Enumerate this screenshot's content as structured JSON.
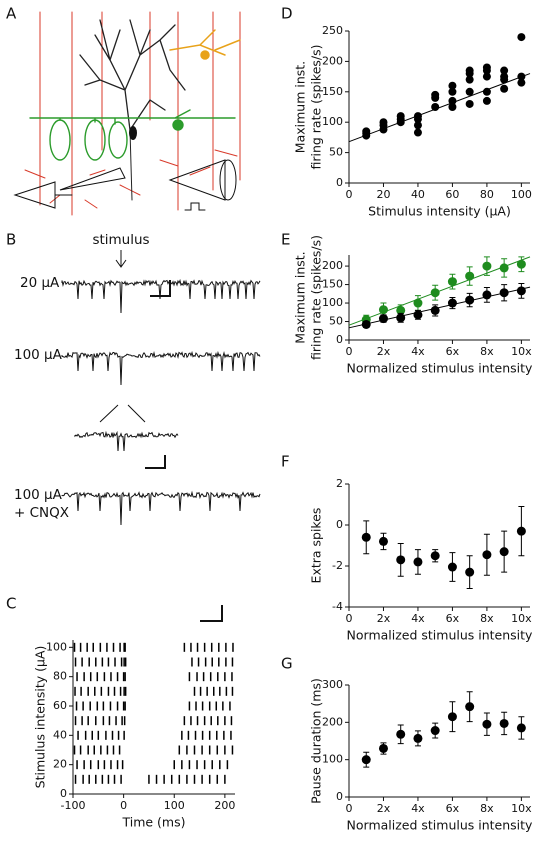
{
  "panel_labels": [
    "A",
    "B",
    "C",
    "D",
    "E",
    "F",
    "G"
  ],
  "traces": {
    "stimulus_label": "stimulus",
    "labels": [
      "20 μA",
      "100 μA",
      "100 μA",
      "+ CNQX"
    ]
  },
  "chart_data": [
    {
      "type": "raster",
      "xlabel": "Time (ms)",
      "ylabel": [
        "Stimulus intensity (μA)"
      ],
      "color": "#000000",
      "xlim": [
        -100,
        220
      ],
      "ylim": [
        0,
        105
      ],
      "xticks": [
        -100,
        0,
        100,
        200
      ],
      "yticks": [
        0,
        20,
        40,
        60,
        80,
        100
      ],
      "rows": [
        {
          "y": 10,
          "times": [
            -95,
            -80,
            -68,
            -55,
            -42,
            -30,
            -18,
            -5,
            50,
            65,
            80,
            95,
            110,
            125,
            140,
            155,
            170,
            185,
            200
          ]
        },
        {
          "y": 20,
          "times": [
            -92,
            -78,
            -65,
            -50,
            -38,
            -25,
            -12,
            -2,
            100,
            115,
            130,
            145,
            160,
            175,
            190,
            205
          ]
        },
        {
          "y": 30,
          "times": [
            -97,
            -85,
            -70,
            -58,
            -45,
            -32,
            -20,
            -8,
            110,
            125,
            140,
            155,
            170,
            185,
            200,
            215
          ]
        },
        {
          "y": 40,
          "times": [
            -90,
            -75,
            -62,
            -50,
            -35,
            -22,
            -10,
            1,
            115,
            128,
            142,
            156,
            170,
            184,
            198,
            212
          ]
        },
        {
          "y": 50,
          "times": [
            -95,
            -82,
            -70,
            -55,
            -40,
            -28,
            -15,
            -3,
            2,
            120,
            133,
            146,
            160,
            173,
            186,
            200,
            213
          ]
        },
        {
          "y": 60,
          "times": [
            -93,
            -80,
            -66,
            -52,
            -40,
            -26,
            -12,
            0,
            3,
            130,
            143,
            156,
            170,
            183,
            196,
            210
          ]
        },
        {
          "y": 70,
          "times": [
            -96,
            -84,
            -70,
            -57,
            -44,
            -30,
            -18,
            -6,
            1,
            4,
            140,
            152,
            165,
            178,
            190,
            203,
            215
          ]
        },
        {
          "y": 80,
          "times": [
            -92,
            -78,
            -65,
            -52,
            -38,
            -25,
            -12,
            0,
            3,
            130,
            145,
            158,
            172,
            186,
            200,
            214
          ]
        },
        {
          "y": 90,
          "times": [
            -95,
            -82,
            -68,
            -55,
            -42,
            -30,
            -17,
            -4,
            1,
            4,
            135,
            148,
            162,
            175,
            188,
            202,
            215
          ]
        },
        {
          "y": 100,
          "times": [
            -97,
            -85,
            -72,
            -60,
            -46,
            -33,
            -20,
            -7,
            1,
            3,
            120,
            133,
            146,
            160,
            174,
            188,
            202,
            216
          ]
        }
      ]
    },
    {
      "type": "scatter",
      "xlabel": "Stimulus intensity (μA)",
      "ylabel": [
        "Maximum inst.",
        "firing rate (spikes/s)"
      ],
      "color": "#000000",
      "xlim": [
        0,
        105
      ],
      "ylim": [
        0,
        250
      ],
      "xticks": [
        0,
        20,
        40,
        60,
        80,
        100
      ],
      "yticks": [
        0,
        50,
        100,
        150,
        200,
        250
      ],
      "x": [
        10,
        10,
        10,
        20,
        20,
        20,
        30,
        30,
        30,
        40,
        40,
        40,
        40,
        50,
        50,
        50,
        60,
        60,
        60,
        60,
        70,
        70,
        70,
        70,
        70,
        80,
        80,
        80,
        80,
        80,
        90,
        90,
        90,
        90,
        100,
        100,
        100
      ],
      "y": [
        78,
        82,
        85,
        88,
        95,
        100,
        100,
        105,
        110,
        83,
        95,
        105,
        110,
        125,
        140,
        145,
        125,
        135,
        150,
        160,
        130,
        150,
        170,
        180,
        185,
        135,
        150,
        175,
        185,
        190,
        155,
        170,
        175,
        185,
        165,
        175,
        240
      ],
      "fit": {
        "x": [
          0,
          105
        ],
        "y": [
          68,
          180
        ]
      }
    },
    {
      "type": "errorbar",
      "xlabel": "Normalized stimulus intensity",
      "ylabel": [
        "Maximum inst.",
        "firing rate (spikes/s)"
      ],
      "xlim": [
        0,
        10.5
      ],
      "ylim": [
        0,
        230
      ],
      "xticks": [
        0,
        {
          "value": 2,
          "label": "2x"
        },
        {
          "value": 4,
          "label": "4x"
        },
        {
          "value": 6,
          "label": "6x"
        },
        {
          "value": 8,
          "label": "8x"
        },
        {
          "value": 10,
          "label": "10x"
        }
      ],
      "yticks": [
        0,
        50,
        100,
        150,
        200
      ],
      "x": [
        1,
        2,
        3,
        4,
        5,
        6,
        7,
        8,
        9,
        10
      ],
      "series": [
        {
          "color": "#1e8c1e",
          "values": [
            55,
            82,
            80,
            100,
            128,
            158,
            173,
            200,
            195,
            205
          ],
          "errors": [
            12,
            18,
            15,
            20,
            20,
            20,
            25,
            25,
            25,
            20
          ],
          "fit": {
            "x": [
              0,
              10.5
            ],
            "y": [
              40,
              225
            ]
          }
        },
        {
          "color": "#000000",
          "values": [
            42,
            58,
            60,
            68,
            80,
            100,
            108,
            122,
            128,
            133
          ],
          "errors": [
            8,
            10,
            12,
            12,
            15,
            15,
            18,
            20,
            22,
            20
          ],
          "fit": {
            "x": [
              0,
              10.5
            ],
            "y": [
              33,
              143
            ]
          }
        }
      ]
    },
    {
      "type": "errorbar",
      "xlabel": "Normalized stimulus intensity",
      "ylabel": [
        "Extra spikes"
      ],
      "xlim": [
        0,
        10.5
      ],
      "ylim": [
        -4,
        2
      ],
      "xticks": [
        0,
        {
          "value": 2,
          "label": "2x"
        },
        {
          "value": 4,
          "label": "4x"
        },
        {
          "value": 6,
          "label": "6x"
        },
        {
          "value": 8,
          "label": "8x"
        },
        {
          "value": 10,
          "label": "10x"
        }
      ],
      "yticks": [
        -4,
        -2,
        0,
        2
      ],
      "x": [
        1,
        2,
        3,
        4,
        5,
        6,
        7,
        8,
        9,
        10
      ],
      "series": [
        {
          "color": "#000000",
          "values": [
            -0.6,
            -0.8,
            -1.7,
            -1.8,
            -1.5,
            -2.05,
            -2.3,
            -1.45,
            -1.3,
            -0.3
          ],
          "errors": [
            0.8,
            0.4,
            0.8,
            0.6,
            0.3,
            0.7,
            0.8,
            1.0,
            1.0,
            1.2
          ]
        }
      ]
    },
    {
      "type": "errorbar",
      "xlabel": "Normalized stimulus intensity",
      "ylabel": [
        "Pause duration (ms)"
      ],
      "xlim": [
        0,
        10.5
      ],
      "ylim": [
        0,
        300
      ],
      "xticks": [
        0,
        {
          "value": 2,
          "label": "2x"
        },
        {
          "value": 4,
          "label": "4x"
        },
        {
          "value": 6,
          "label": "6x"
        },
        {
          "value": 8,
          "label": "8x"
        },
        {
          "value": 10,
          "label": "10x"
        }
      ],
      "yticks": [
        0,
        100,
        200,
        300
      ],
      "x": [
        1,
        2,
        3,
        4,
        5,
        6,
        7,
        8,
        9,
        10
      ],
      "series": [
        {
          "color": "#000000",
          "values": [
            100,
            130,
            168,
            157,
            178,
            215,
            242,
            195,
            197,
            185
          ],
          "errors": [
            20,
            15,
            25,
            20,
            20,
            40,
            40,
            30,
            30,
            30
          ]
        }
      ]
    }
  ]
}
